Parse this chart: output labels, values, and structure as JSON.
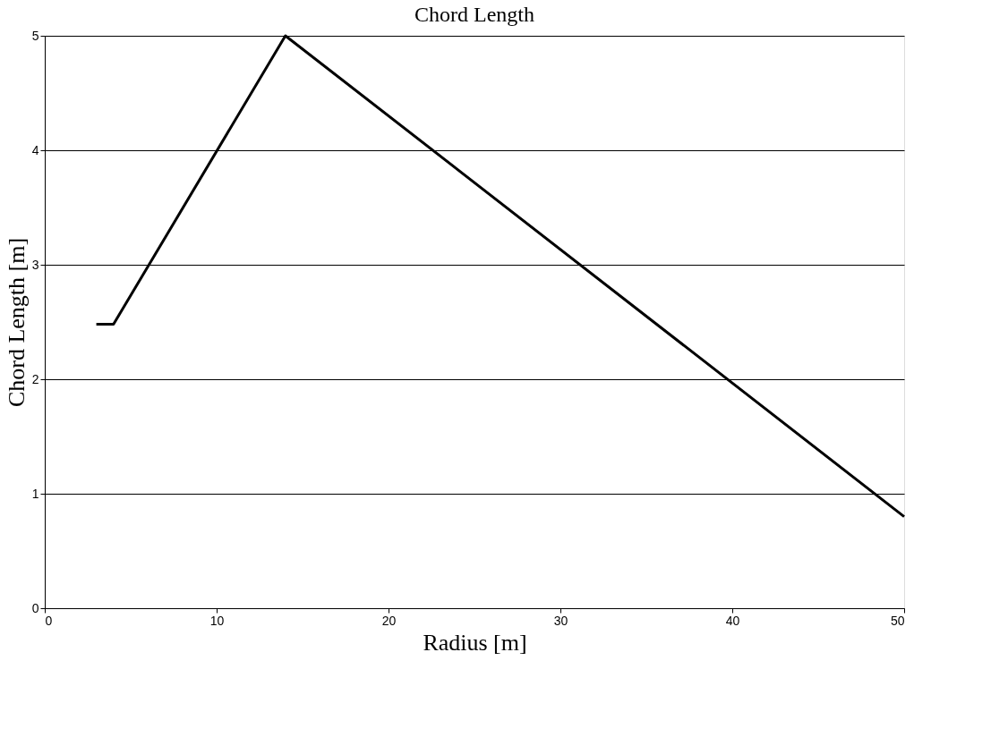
{
  "chart_data": {
    "type": "line",
    "title": "Chord Length",
    "xlabel": "Radius [m]",
    "ylabel": "Chord Length [m]",
    "x": [
      3,
      4,
      14,
      50
    ],
    "series": [
      {
        "color": "#000000",
        "values": [
          2.48,
          2.48,
          5,
          0.8
        ]
      }
    ],
    "xlim": [
      0,
      50
    ],
    "xticks": [
      0,
      10,
      20,
      30,
      40,
      50
    ],
    "ylim": [
      0,
      5
    ],
    "yticks": [
      0,
      1,
      2,
      3,
      4,
      5
    ],
    "grid": "y",
    "marker": "none",
    "line_style": "solid"
  }
}
